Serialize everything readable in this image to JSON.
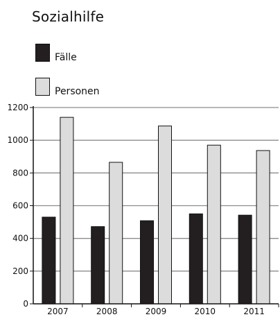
{
  "chart_data": {
    "type": "bar",
    "title": "Sozialhilfe",
    "categories": [
      "2007",
      "2008",
      "2009",
      "2010",
      "2011"
    ],
    "series": [
      {
        "name": "Fälle",
        "color": "#231f20",
        "values": [
          530,
          472,
          508,
          550,
          542
        ]
      },
      {
        "name": "Personen",
        "color": "#dcdcdc",
        "values": [
          1140,
          865,
          1087,
          970,
          937
        ]
      }
    ],
    "xlabel": "",
    "ylabel": "",
    "ylim": [
      0,
      1200
    ],
    "yticks": [
      0,
      200,
      400,
      600,
      800,
      1000,
      1200
    ],
    "grid": true,
    "legend": "top-left"
  }
}
